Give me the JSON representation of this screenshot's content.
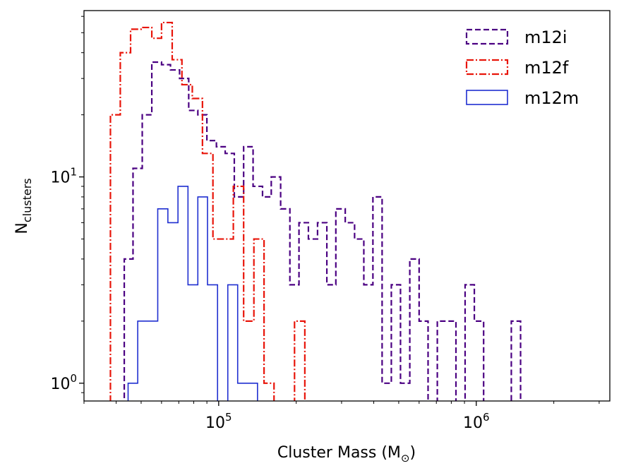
{
  "chart_data": {
    "type": "histogram",
    "xscale": "log",
    "yscale": "log",
    "xlim": [
      30000,
      3300000
    ],
    "ylim": [
      0.82,
      64
    ],
    "xlabel": {
      "main": "Cluster Mass (M",
      "sub": "⊙",
      "tail": ")"
    },
    "ylabel": {
      "main": "N",
      "sub": "clusters"
    },
    "x_ticks": [
      {
        "value": 100000,
        "base": "10",
        "exp": "5"
      },
      {
        "value": 1000000,
        "base": "10",
        "exp": "6"
      }
    ],
    "y_ticks": [
      {
        "value": 1,
        "base": "10",
        "exp": "0"
      },
      {
        "value": 10,
        "base": "10",
        "exp": "1"
      }
    ],
    "legend_position": "top-right",
    "series": [
      {
        "name": "m12i",
        "color": "#4b0082",
        "style": "dashed",
        "bins": [
          [
            43000,
            46500,
            4
          ],
          [
            46500,
            50500,
            11
          ],
          [
            50500,
            55000,
            20
          ],
          [
            55000,
            60000,
            36
          ],
          [
            60000,
            65000,
            35
          ],
          [
            65000,
            70500,
            33
          ],
          [
            70500,
            76500,
            30
          ],
          [
            76500,
            83000,
            21
          ],
          [
            83000,
            90000,
            20
          ],
          [
            90000,
            98000,
            15
          ],
          [
            98000,
            106000,
            14
          ],
          [
            106000,
            115000,
            13
          ],
          [
            115000,
            125000,
            8
          ],
          [
            125000,
            136000,
            14
          ],
          [
            136000,
            148000,
            9
          ],
          [
            148000,
            160000,
            8
          ],
          [
            160000,
            174000,
            10
          ],
          [
            174000,
            189000,
            7
          ],
          [
            189000,
            205000,
            3
          ],
          [
            205000,
            223000,
            6
          ],
          [
            223000,
            242000,
            5
          ],
          [
            242000,
            263000,
            6
          ],
          [
            263000,
            285000,
            3
          ],
          [
            285000,
            310000,
            7
          ],
          [
            310000,
            337000,
            6
          ],
          [
            337000,
            366000,
            5
          ],
          [
            366000,
            397000,
            3
          ],
          [
            397000,
            431000,
            8
          ],
          [
            431000,
            468000,
            1
          ],
          [
            468000,
            508000,
            3
          ],
          [
            508000,
            552000,
            1
          ],
          [
            552000,
            600000,
            4
          ],
          [
            600000,
            650000,
            2
          ],
          [
            650000,
            706000,
            0.5
          ],
          [
            706000,
            768000,
            2
          ],
          [
            768000,
            834000,
            2
          ],
          [
            834000,
            905000,
            0.5
          ],
          [
            905000,
            983000,
            3
          ],
          [
            983000,
            1068000,
            2
          ],
          [
            1068000,
            1160000,
            0.5
          ],
          [
            1160000,
            1260000,
            0.5
          ],
          [
            1260000,
            1368000,
            0.5
          ],
          [
            1368000,
            1486000,
            2
          ]
        ]
      },
      {
        "name": "m12f",
        "color": "#e8150a",
        "style": "dashdot",
        "bins": [
          [
            38000,
            41500,
            20
          ],
          [
            41500,
            45500,
            40
          ],
          [
            45500,
            50000,
            52
          ],
          [
            50000,
            55000,
            53
          ],
          [
            55000,
            60000,
            47
          ],
          [
            60000,
            66000,
            56
          ],
          [
            66000,
            72000,
            37
          ],
          [
            72000,
            79000,
            28
          ],
          [
            79000,
            86500,
            24
          ],
          [
            86500,
            95000,
            13
          ],
          [
            95000,
            104000,
            5
          ],
          [
            104000,
            114000,
            5
          ],
          [
            114000,
            125000,
            9
          ],
          [
            125000,
            137000,
            2
          ],
          [
            137000,
            150000,
            5
          ],
          [
            150000,
            164000,
            1
          ],
          [
            164000,
            180000,
            0.5
          ],
          [
            180000,
            197000,
            0.5
          ],
          [
            197000,
            216000,
            2
          ]
        ]
      },
      {
        "name": "m12m",
        "color": "#1f2fd0",
        "style": "solid",
        "bins": [
          [
            44500,
            48500,
            1
          ],
          [
            48500,
            53000,
            2
          ],
          [
            53000,
            58000,
            2
          ],
          [
            58000,
            63500,
            7
          ],
          [
            63500,
            69500,
            6
          ],
          [
            69500,
            76000,
            9
          ],
          [
            76000,
            83000,
            3
          ],
          [
            83000,
            90500,
            8
          ],
          [
            90500,
            99000,
            3
          ],
          [
            99000,
            108500,
            0.5
          ],
          [
            108500,
            118500,
            3
          ],
          [
            118500,
            129500,
            1
          ],
          [
            129500,
            141500,
            1
          ]
        ]
      }
    ]
  }
}
